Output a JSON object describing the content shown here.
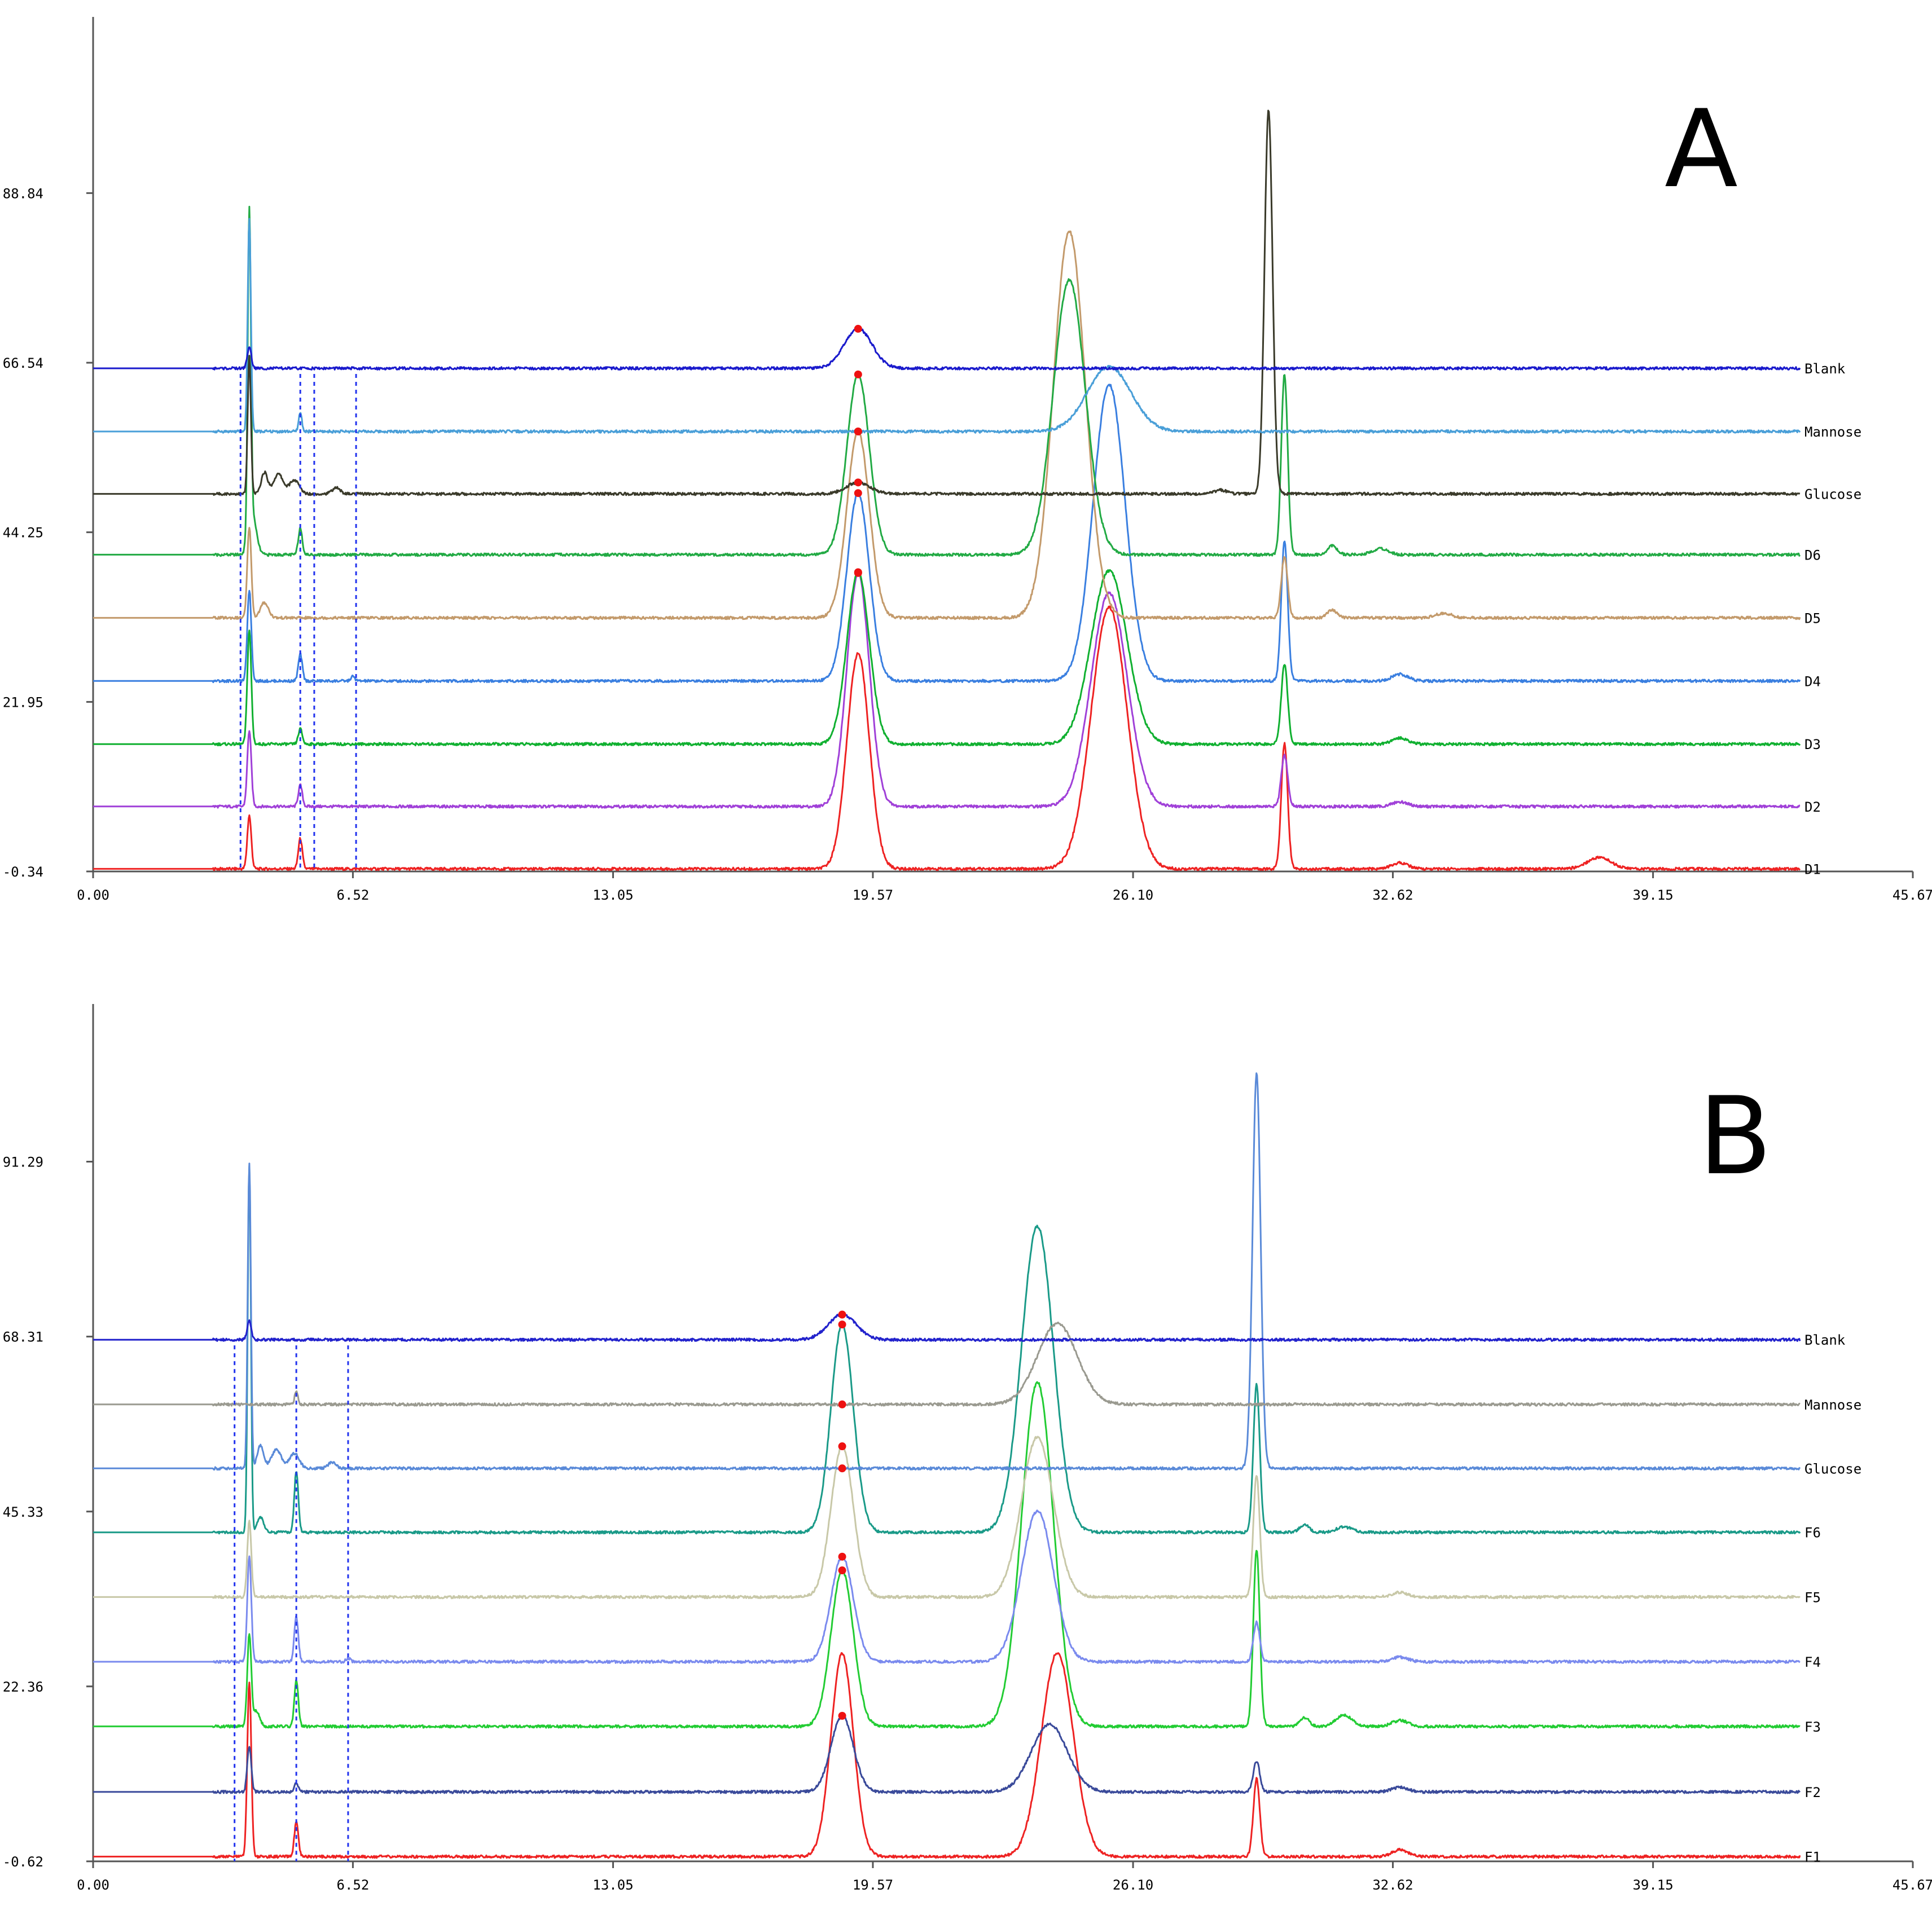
{
  "chart_data": [
    {
      "type": "line",
      "panel_label": "A",
      "x_ticks": [
        "0.00",
        "6.52",
        "13.05",
        "19.57",
        "26.10",
        "32.62",
        "39.15",
        "45.67"
      ],
      "xlim": [
        0,
        45.67
      ],
      "y_ticks": [
        "-0.34",
        "21.95",
        "44.25",
        "66.54",
        "88.84"
      ],
      "ylim": [
        -0.34,
        112
      ],
      "grid": false,
      "marker_times": [
        3.7,
        5.2,
        5.55,
        6.6
      ],
      "series": [
        {
          "name": "Blank",
          "color": "#1a1acc",
          "width": 6,
          "baseline": 65.8,
          "peaks": [
            [
              3.92,
              2.8,
              0.05
            ],
            [
              19.2,
              5.2,
              0.35
            ]
          ],
          "dots": [
            19.2
          ]
        },
        {
          "name": "Mannose",
          "color": "#4a9fd8",
          "width": 3,
          "baseline": 57.5,
          "peaks": [
            [
              3.92,
              28,
              0.04
            ],
            [
              5.2,
              2.5,
              0.04
            ],
            [
              25.5,
              8.5,
              0.55
            ]
          ],
          "dots": [
            19.2
          ]
        },
        {
          "name": "Glucose",
          "color": "#3a3a2a",
          "width": 3,
          "baseline": 49.3,
          "peaks": [
            [
              3.92,
              18,
              0.04
            ],
            [
              4.3,
              2.8,
              0.08
            ],
            [
              4.65,
              2.6,
              0.12
            ],
            [
              5.05,
              1.8,
              0.12
            ],
            [
              6.1,
              0.8,
              0.1
            ],
            [
              19.2,
              1.5,
              0.3
            ],
            [
              29.5,
              50.5,
              0.1
            ],
            [
              28.3,
              0.5,
              0.15
            ]
          ],
          "dots": [
            19.2
          ]
        },
        {
          "name": "D6",
          "color": "#22aa44",
          "width": 3,
          "baseline": 41.3,
          "peaks": [
            [
              3.92,
              42,
              0.04
            ],
            [
              4.0,
              5,
              0.1
            ],
            [
              5.2,
              3.5,
              0.05
            ],
            [
              19.2,
              23.7,
              0.28
            ],
            [
              24.5,
              36.1,
              0.4
            ],
            [
              29.9,
              23.7,
              0.08
            ],
            [
              31.1,
              1.2,
              0.12
            ],
            [
              32.3,
              0.8,
              0.2
            ]
          ],
          "dots": [
            19.2
          ]
        },
        {
          "name": "D5",
          "color": "#c39a6b",
          "width": 3,
          "baseline": 33.0,
          "peaks": [
            [
              3.92,
              12,
              0.05
            ],
            [
              4.3,
              2,
              0.1
            ],
            [
              19.2,
              24.5,
              0.28
            ],
            [
              24.5,
              50.8,
              0.4
            ],
            [
              29.9,
              8,
              0.08
            ],
            [
              31.1,
              1,
              0.12
            ],
            [
              33.9,
              0.6,
              0.2
            ]
          ],
          "dots": [
            19.2
          ]
        },
        {
          "name": "D4",
          "color": "#3a7fe0",
          "width": 3,
          "baseline": 24.7,
          "peaks": [
            [
              3.92,
              12,
              0.05
            ],
            [
              5.2,
              3.5,
              0.05
            ],
            [
              6.52,
              0.6,
              0.05
            ],
            [
              19.2,
              24.7,
              0.28
            ],
            [
              25.5,
              39,
              0.4
            ],
            [
              29.9,
              18.4,
              0.08
            ],
            [
              32.8,
              0.9,
              0.2
            ]
          ],
          "dots": [
            19.2
          ]
        },
        {
          "name": "D3",
          "color": "#10b030",
          "width": 3,
          "baseline": 16.4,
          "peaks": [
            [
              3.92,
              15,
              0.05
            ],
            [
              5.2,
              2,
              0.05
            ],
            [
              19.2,
              22.6,
              0.28
            ],
            [
              25.5,
              22.8,
              0.45
            ],
            [
              29.9,
              10.6,
              0.08
            ],
            [
              32.8,
              0.8,
              0.2
            ]
          ],
          "dots": [
            19.2
          ]
        },
        {
          "name": "D2",
          "color": "#a040d8",
          "width": 3,
          "baseline": 8.2,
          "peaks": [
            [
              3.92,
              10,
              0.05
            ],
            [
              5.2,
              2.8,
              0.05
            ],
            [
              19.2,
              30.7,
              0.28
            ],
            [
              25.5,
              28.1,
              0.45
            ],
            [
              29.9,
              6.7,
              0.08
            ],
            [
              32.8,
              0.6,
              0.2
            ]
          ],
          "dots": [
            19.2
          ]
        },
        {
          "name": "D1",
          "color": "#ee2222",
          "width": 3,
          "baseline": 0,
          "peaks": [
            [
              3.92,
              7,
              0.05
            ],
            [
              5.2,
              4,
              0.05
            ],
            [
              19.2,
              28.3,
              0.28
            ],
            [
              25.5,
              34.4,
              0.45
            ],
            [
              29.9,
              16.5,
              0.08
            ],
            [
              32.8,
              0.8,
              0.2
            ],
            [
              37.8,
              1.5,
              0.3
            ]
          ],
          "dots": []
        }
      ]
    },
    {
      "type": "line",
      "panel_label": "B",
      "x_ticks": [
        "0.00",
        "6.52",
        "13.05",
        "19.57",
        "26.10",
        "32.62",
        "39.15",
        "45.67"
      ],
      "xlim": [
        0,
        45.67
      ],
      "y_ticks": [
        "-0.62",
        "22.36",
        "45.33",
        "68.31",
        "91.29"
      ],
      "ylim": [
        -0.62,
        112
      ],
      "grid": false,
      "marker_times": [
        3.55,
        5.1,
        6.4
      ],
      "series": [
        {
          "name": "Blank",
          "color": "#2222cc",
          "width": 5,
          "baseline": 67.9,
          "peaks": [
            [
              3.92,
              2.5,
              0.05
            ],
            [
              18.8,
              3.3,
              0.35
            ]
          ],
          "dots": [
            18.8
          ]
        },
        {
          "name": "Mannose",
          "color": "#9a9a90",
          "width": 3,
          "baseline": 59.4,
          "peaks": [
            [
              5.1,
              1.8,
              0.04
            ],
            [
              24.2,
              10.6,
              0.5
            ]
          ],
          "dots": [
            18.8
          ]
        },
        {
          "name": "Glucose",
          "color": "#5a8ad8",
          "width": 3,
          "baseline": 51.0,
          "peaks": [
            [
              3.92,
              40,
              0.04
            ],
            [
              4.2,
              3,
              0.08
            ],
            [
              4.6,
              2.5,
              0.12
            ],
            [
              5.05,
              2,
              0.12
            ],
            [
              6.0,
              0.8,
              0.1
            ],
            [
              29.2,
              52,
              0.1
            ]
          ],
          "dots": [
            18.8
          ]
        },
        {
          "name": "F6",
          "color": "#1a9a88",
          "width": 3,
          "baseline": 42.6,
          "peaks": [
            [
              3.92,
              48,
              0.04
            ],
            [
              4.2,
              2,
              0.08
            ],
            [
              5.1,
              8,
              0.05
            ],
            [
              18.8,
              27.3,
              0.28
            ],
            [
              23.7,
              40.2,
              0.4
            ],
            [
              29.2,
              19.4,
              0.08
            ],
            [
              30.4,
              1,
              0.12
            ],
            [
              31.4,
              0.7,
              0.2
            ]
          ],
          "dots": [
            18.8
          ]
        },
        {
          "name": "F5",
          "color": "#c8c8a8",
          "width": 3,
          "baseline": 34.1,
          "peaks": [
            [
              3.92,
              10,
              0.05
            ],
            [
              18.8,
              19.8,
              0.28
            ],
            [
              23.7,
              21,
              0.4
            ],
            [
              29.2,
              16,
              0.08
            ],
            [
              32.8,
              0.6,
              0.2
            ]
          ],
          "dots": [
            18.8
          ]
        },
        {
          "name": "F4",
          "color": "#7a8aee",
          "width": 3,
          "baseline": 25.6,
          "peaks": [
            [
              3.92,
              14,
              0.05
            ],
            [
              5.1,
              6,
              0.05
            ],
            [
              6.4,
              0.5,
              0.05
            ],
            [
              18.8,
              13.8,
              0.28
            ],
            [
              23.7,
              19.8,
              0.4
            ],
            [
              29.2,
              5.2,
              0.08
            ],
            [
              32.8,
              0.6,
              0.2
            ]
          ],
          "dots": [
            18.8
          ]
        },
        {
          "name": "F3",
          "color": "#22cc33",
          "width": 3,
          "baseline": 17.1,
          "peaks": [
            [
              3.92,
              12,
              0.05
            ],
            [
              4.1,
              2,
              0.08
            ],
            [
              5.1,
              6,
              0.05
            ],
            [
              18.8,
              20.5,
              0.28
            ],
            [
              23.7,
              45.2,
              0.4
            ],
            [
              29.2,
              23.2,
              0.08
            ],
            [
              30.4,
              1.2,
              0.12
            ],
            [
              31.4,
              1.5,
              0.2
            ],
            [
              32.8,
              0.8,
              0.2
            ]
          ],
          "dots": [
            18.8
          ]
        },
        {
          "name": "F2",
          "color": "#3a4a9a",
          "width": 3,
          "baseline": 8.5,
          "peaks": [
            [
              3.92,
              6,
              0.05
            ],
            [
              5.1,
              1.2,
              0.05
            ],
            [
              18.8,
              10,
              0.28
            ],
            [
              24.0,
              8.9,
              0.45
            ],
            [
              29.2,
              4,
              0.08
            ],
            [
              32.8,
              0.6,
              0.2
            ]
          ],
          "dots": [
            18.8
          ]
        },
        {
          "name": "F1",
          "color": "#ee2222",
          "width": 3,
          "baseline": 0,
          "peaks": [
            [
              3.92,
              23,
              0.05
            ],
            [
              5.1,
              4.5,
              0.05
            ],
            [
              18.8,
              26.7,
              0.28
            ],
            [
              24.2,
              26.8,
              0.4
            ],
            [
              29.2,
              10.2,
              0.08
            ],
            [
              32.8,
              0.9,
              0.2
            ]
          ],
          "dots": []
        }
      ]
    }
  ]
}
